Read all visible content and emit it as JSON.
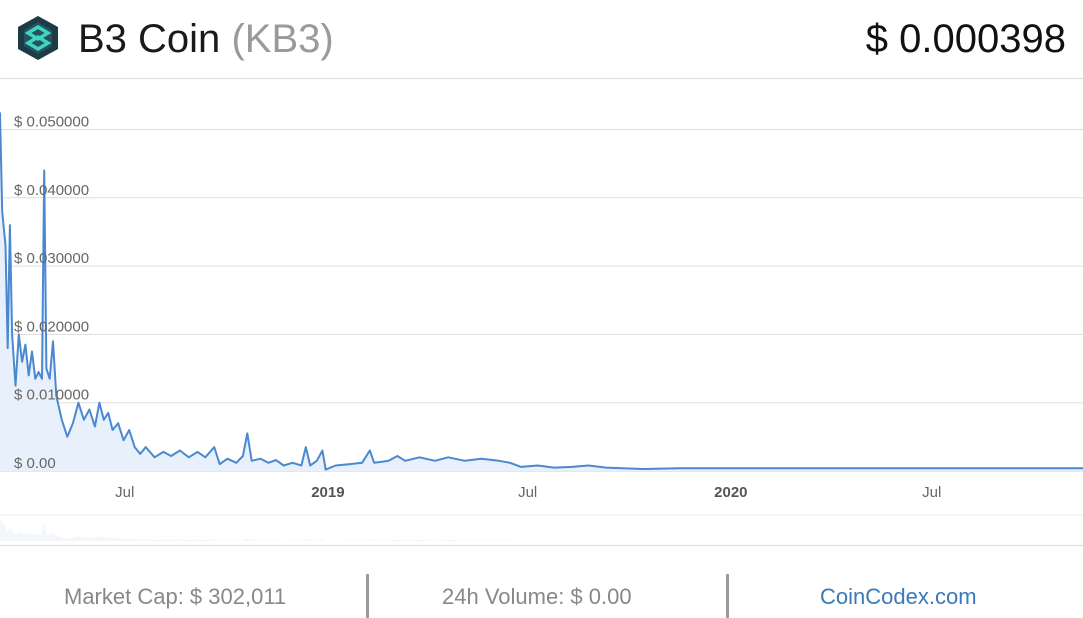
{
  "header": {
    "coin_name": "B3 Coin",
    "coin_symbol": "(KB3)",
    "price": "$ 0.000398",
    "logo_icon": "b3coin-logo-icon"
  },
  "footer": {
    "market_cap": "Market Cap: $ 302,011",
    "volume": "24h Volume: $ 0.00",
    "brand": "CoinCodex.com"
  },
  "colors": {
    "line": "#4a89d0",
    "area": "#e8f1fb",
    "grid": "#dddddd",
    "brand_link": "#3a7ab8",
    "logo_teal": "#3fd6c0",
    "logo_dark": "#1d3b45"
  },
  "chart_data": {
    "type": "area",
    "title": "",
    "xlabel": "",
    "ylabel": "",
    "y_ticks": [
      {
        "value": 0.05,
        "label": "$ 0.050000"
      },
      {
        "value": 0.04,
        "label": "$ 0.040000"
      },
      {
        "value": 0.03,
        "label": "$ 0.030000"
      },
      {
        "value": 0.02,
        "label": "$ 0.020000"
      },
      {
        "value": 0.01,
        "label": "$ 0.010000"
      },
      {
        "value": 0.0,
        "label": "$ 0.00"
      }
    ],
    "x_ticks": [
      {
        "date": "2018-07-01",
        "label": "Jul",
        "bold": false
      },
      {
        "date": "2019-01-01",
        "label": "2019",
        "bold": true
      },
      {
        "date": "2019-07-01",
        "label": "Jul",
        "bold": false
      },
      {
        "date": "2020-01-01",
        "label": "2020",
        "bold": true
      },
      {
        "date": "2020-07-01",
        "label": "Jul",
        "bold": false
      }
    ],
    "ylim": [
      0,
      0.053
    ],
    "xlim": [
      "2018-03-10",
      "2020-11-15"
    ],
    "grid": true,
    "series": [
      {
        "points": [
          [
            "2018-03-10",
            0.0525
          ],
          [
            "2018-03-12",
            0.038
          ],
          [
            "2018-03-15",
            0.033
          ],
          [
            "2018-03-17",
            0.018
          ],
          [
            "2018-03-19",
            0.036
          ],
          [
            "2018-03-21",
            0.02
          ],
          [
            "2018-03-24",
            0.0125
          ],
          [
            "2018-03-27",
            0.02
          ],
          [
            "2018-03-30",
            0.016
          ],
          [
            "2018-04-02",
            0.0185
          ],
          [
            "2018-04-05",
            0.014
          ],
          [
            "2018-04-08",
            0.0175
          ],
          [
            "2018-04-11",
            0.0135
          ],
          [
            "2018-04-14",
            0.0145
          ],
          [
            "2018-04-17",
            0.0135
          ],
          [
            "2018-04-19",
            0.044
          ],
          [
            "2018-04-21",
            0.015
          ],
          [
            "2018-04-24",
            0.0135
          ],
          [
            "2018-04-27",
            0.019
          ],
          [
            "2018-04-30",
            0.011
          ],
          [
            "2018-05-05",
            0.0075
          ],
          [
            "2018-05-10",
            0.005
          ],
          [
            "2018-05-15",
            0.007
          ],
          [
            "2018-05-20",
            0.01
          ],
          [
            "2018-05-25",
            0.0075
          ],
          [
            "2018-05-30",
            0.009
          ],
          [
            "2018-06-04",
            0.0065
          ],
          [
            "2018-06-08",
            0.01
          ],
          [
            "2018-06-12",
            0.0075
          ],
          [
            "2018-06-16",
            0.0085
          ],
          [
            "2018-06-20",
            0.006
          ],
          [
            "2018-06-25",
            0.007
          ],
          [
            "2018-06-30",
            0.0045
          ],
          [
            "2018-07-05",
            0.006
          ],
          [
            "2018-07-10",
            0.0035
          ],
          [
            "2018-07-15",
            0.0025
          ],
          [
            "2018-07-20",
            0.0035
          ],
          [
            "2018-07-28",
            0.002
          ],
          [
            "2018-08-05",
            0.0028
          ],
          [
            "2018-08-12",
            0.0022
          ],
          [
            "2018-08-20",
            0.003
          ],
          [
            "2018-08-28",
            0.002
          ],
          [
            "2018-09-05",
            0.0028
          ],
          [
            "2018-09-12",
            0.002
          ],
          [
            "2018-09-20",
            0.0035
          ],
          [
            "2018-09-25",
            0.001
          ],
          [
            "2018-10-02",
            0.0018
          ],
          [
            "2018-10-10",
            0.0012
          ],
          [
            "2018-10-16",
            0.0022
          ],
          [
            "2018-10-20",
            0.0055
          ],
          [
            "2018-10-24",
            0.0015
          ],
          [
            "2018-11-01",
            0.0018
          ],
          [
            "2018-11-08",
            0.0012
          ],
          [
            "2018-11-15",
            0.0016
          ],
          [
            "2018-11-22",
            0.0008
          ],
          [
            "2018-11-30",
            0.0012
          ],
          [
            "2018-12-08",
            0.0008
          ],
          [
            "2018-12-12",
            0.0035
          ],
          [
            "2018-12-16",
            0.0008
          ],
          [
            "2018-12-22",
            0.0015
          ],
          [
            "2018-12-27",
            0.003
          ],
          [
            "2018-12-30",
            0.0002
          ],
          [
            "2019-01-08",
            0.0008
          ],
          [
            "2019-01-20",
            0.001
          ],
          [
            "2019-02-01",
            0.0012
          ],
          [
            "2019-02-08",
            0.003
          ],
          [
            "2019-02-12",
            0.0012
          ],
          [
            "2019-02-25",
            0.0015
          ],
          [
            "2019-03-05",
            0.0022
          ],
          [
            "2019-03-12",
            0.0015
          ],
          [
            "2019-03-25",
            0.002
          ],
          [
            "2019-04-08",
            0.0015
          ],
          [
            "2019-04-20",
            0.002
          ],
          [
            "2019-05-05",
            0.0015
          ],
          [
            "2019-05-20",
            0.0018
          ],
          [
            "2019-06-05",
            0.0015
          ],
          [
            "2019-06-15",
            0.0012
          ],
          [
            "2019-06-25",
            0.0006
          ],
          [
            "2019-07-10",
            0.0008
          ],
          [
            "2019-07-25",
            0.0005
          ],
          [
            "2019-08-10",
            0.0006
          ],
          [
            "2019-08-25",
            0.0008
          ],
          [
            "2019-09-10",
            0.0005
          ],
          [
            "2019-09-25",
            0.0004
          ],
          [
            "2019-10-15",
            0.0003
          ],
          [
            "2019-11-15",
            0.0004
          ],
          [
            "2019-12-15",
            0.0004
          ],
          [
            "2020-01-15",
            0.0004
          ],
          [
            "2020-03-01",
            0.0004
          ],
          [
            "2020-05-01",
            0.0004
          ],
          [
            "2020-07-01",
            0.0004
          ],
          [
            "2020-09-01",
            0.0004
          ],
          [
            "2020-11-15",
            0.000398
          ]
        ]
      }
    ]
  }
}
